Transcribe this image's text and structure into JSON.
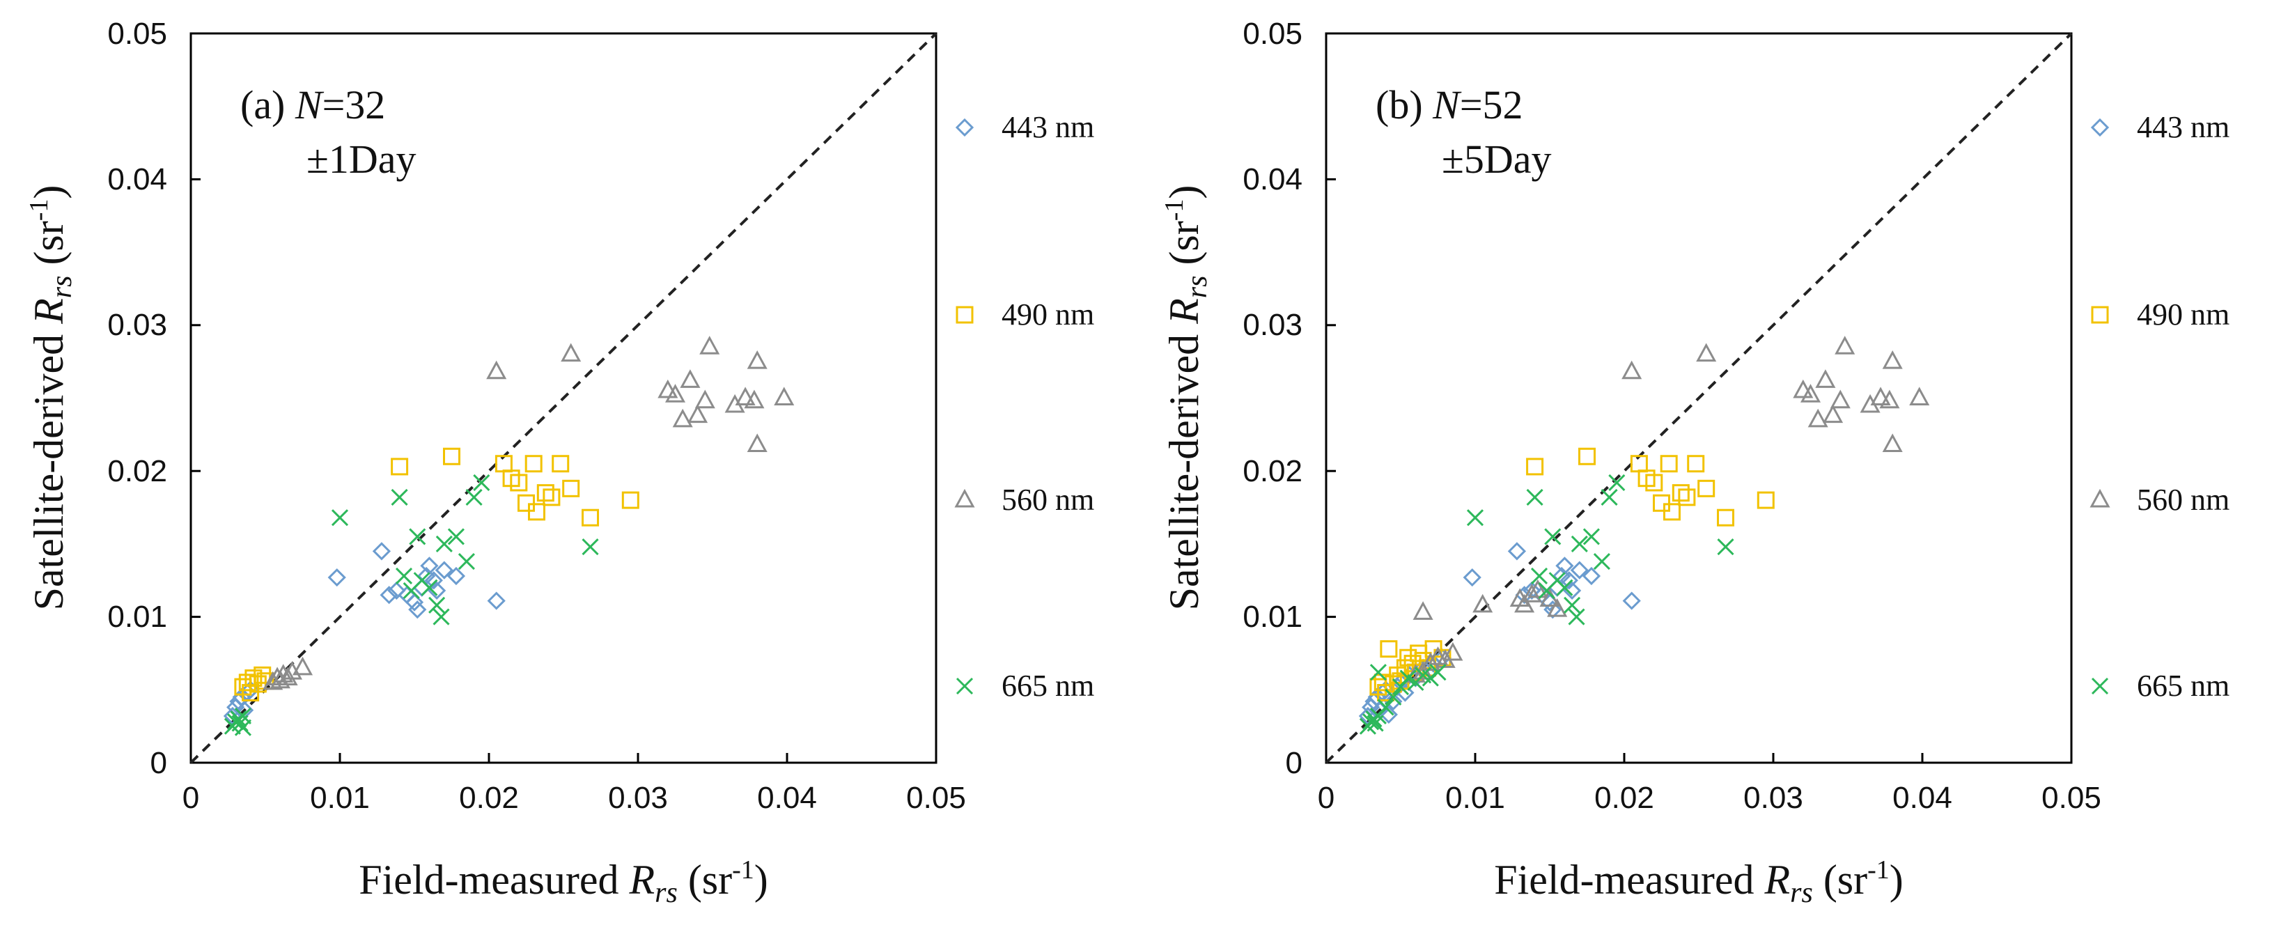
{
  "chart_data": [
    {
      "type": "scatter",
      "panel": "(a)",
      "title": "",
      "annotation": {
        "prefix": "(a) ",
        "n_symbol": "N",
        "n_value": "=32",
        "window": "±1Day"
      },
      "xlabel": {
        "text": "Field-measured ",
        "sym": "R",
        "sub": "rs",
        "unit": " (sr",
        "exp": "-1",
        "close": ")"
      },
      "ylabel": {
        "text": "Satellite-derived ",
        "sym": "R",
        "sub": "rs",
        "unit": " (sr",
        "exp": "-1",
        "close": ")"
      },
      "xlim": [
        0,
        0.05
      ],
      "ylim": [
        0,
        0.05
      ],
      "xticks": [
        "0",
        "0.01",
        "0.02",
        "0.03",
        "0.04",
        "0.05"
      ],
      "yticks": [
        "0",
        "0.01",
        "0.02",
        "0.03",
        "0.04",
        "0.05"
      ],
      "one_to_one_line": true,
      "series": [
        {
          "name": "443 nm",
          "marker": "diamond",
          "color": "#6b9ccf",
          "points": [
            [
              0.0098,
              0.0127
            ],
            [
              0.0128,
              0.0145
            ],
            [
              0.0133,
              0.0115
            ],
            [
              0.0138,
              0.0118
            ],
            [
              0.0145,
              0.0115
            ],
            [
              0.015,
              0.011
            ],
            [
              0.0152,
              0.0105
            ],
            [
              0.0155,
              0.012
            ],
            [
              0.0158,
              0.0128
            ],
            [
              0.016,
              0.0135
            ],
            [
              0.0163,
              0.0125
            ],
            [
              0.0165,
              0.0118
            ],
            [
              0.017,
              0.0132
            ],
            [
              0.0178,
              0.0128
            ],
            [
              0.0205,
              0.0111
            ],
            [
              0.0028,
              0.0032
            ],
            [
              0.003,
              0.0038
            ],
            [
              0.0032,
              0.0042
            ],
            [
              0.0034,
              0.0045
            ],
            [
              0.0036,
              0.0036
            ],
            [
              0.0038,
              0.0048
            ],
            [
              0.004,
              0.005
            ]
          ]
        },
        {
          "name": "490 nm",
          "marker": "square",
          "color": "#f2c200",
          "points": [
            [
              0.014,
              0.0203
            ],
            [
              0.0175,
              0.021
            ],
            [
              0.021,
              0.0205
            ],
            [
              0.0215,
              0.0195
            ],
            [
              0.022,
              0.0192
            ],
            [
              0.0225,
              0.0178
            ],
            [
              0.023,
              0.0205
            ],
            [
              0.0232,
              0.0172
            ],
            [
              0.0238,
              0.0185
            ],
            [
              0.0242,
              0.0182
            ],
            [
              0.0248,
              0.0205
            ],
            [
              0.0255,
              0.0188
            ],
            [
              0.0268,
              0.0168
            ],
            [
              0.0295,
              0.018
            ],
            [
              0.0035,
              0.0052
            ],
            [
              0.0038,
              0.0055
            ],
            [
              0.004,
              0.0048
            ],
            [
              0.0042,
              0.0058
            ],
            [
              0.0045,
              0.0054
            ],
            [
              0.0048,
              0.006
            ],
            [
              0.005,
              0.0056
            ]
          ]
        },
        {
          "name": "560 nm",
          "marker": "triangle",
          "color": "#8c8c8c",
          "points": [
            [
              0.0205,
              0.0268
            ],
            [
              0.0255,
              0.028
            ],
            [
              0.032,
              0.0255
            ],
            [
              0.0325,
              0.0252
            ],
            [
              0.033,
              0.0235
            ],
            [
              0.0335,
              0.0262
            ],
            [
              0.034,
              0.0238
            ],
            [
              0.0345,
              0.0248
            ],
            [
              0.0348,
              0.0285
            ],
            [
              0.0365,
              0.0245
            ],
            [
              0.0372,
              0.025
            ],
            [
              0.0378,
              0.0248
            ],
            [
              0.038,
              0.0275
            ],
            [
              0.038,
              0.0218
            ],
            [
              0.0398,
              0.025
            ],
            [
              0.0055,
              0.0055
            ],
            [
              0.0058,
              0.0058
            ],
            [
              0.006,
              0.0056
            ],
            [
              0.0062,
              0.006
            ],
            [
              0.0065,
              0.0058
            ],
            [
              0.0068,
              0.0062
            ],
            [
              0.0075,
              0.0065
            ]
          ]
        },
        {
          "name": "665 nm",
          "marker": "x",
          "color": "#2db85b",
          "points": [
            [
              0.01,
              0.0168
            ],
            [
              0.014,
              0.0182
            ],
            [
              0.0143,
              0.0128
            ],
            [
              0.0148,
              0.0118
            ],
            [
              0.0152,
              0.0155
            ],
            [
              0.0155,
              0.0125
            ],
            [
              0.016,
              0.012
            ],
            [
              0.0165,
              0.0108
            ],
            [
              0.0168,
              0.01
            ],
            [
              0.017,
              0.015
            ],
            [
              0.0178,
              0.0155
            ],
            [
              0.0185,
              0.0138
            ],
            [
              0.019,
              0.0182
            ],
            [
              0.0195,
              0.0192
            ],
            [
              0.0268,
              0.0148
            ],
            [
              0.0028,
              0.0025
            ],
            [
              0.003,
              0.0028
            ],
            [
              0.0032,
              0.003
            ],
            [
              0.0033,
              0.0027
            ],
            [
              0.0035,
              0.0032
            ],
            [
              0.0035,
              0.0024
            ]
          ]
        }
      ]
    },
    {
      "type": "scatter",
      "panel": "(b)",
      "title": "",
      "annotation": {
        "prefix": "(b) ",
        "n_symbol": "N",
        "n_value": "=52",
        "window": "±5Day"
      },
      "xlabel": {
        "text": "Field-measured ",
        "sym": "R",
        "sub": "rs",
        "unit": " (sr",
        "exp": "-1",
        "close": ")"
      },
      "ylabel": {
        "text": "Satellite-derived ",
        "sym": "R",
        "sub": "rs",
        "unit": " (sr",
        "exp": "-1",
        "close": ")"
      },
      "xlim": [
        0,
        0.05
      ],
      "ylim": [
        0,
        0.05
      ],
      "xticks": [
        "0",
        "0.01",
        "0.02",
        "0.03",
        "0.04",
        "0.05"
      ],
      "yticks": [
        "0",
        "0.01",
        "0.02",
        "0.03",
        "0.04",
        "0.05"
      ],
      "one_to_one_line": true,
      "series": [
        {
          "name": "443 nm",
          "marker": "diamond",
          "color": "#6b9ccf",
          "points": [
            [
              0.0098,
              0.0127
            ],
            [
              0.0128,
              0.0145
            ],
            [
              0.0133,
              0.0115
            ],
            [
              0.0138,
              0.0118
            ],
            [
              0.0145,
              0.0115
            ],
            [
              0.015,
              0.011
            ],
            [
              0.0152,
              0.0105
            ],
            [
              0.0155,
              0.012
            ],
            [
              0.0158,
              0.0128
            ],
            [
              0.016,
              0.0135
            ],
            [
              0.0163,
              0.0125
            ],
            [
              0.0165,
              0.0118
            ],
            [
              0.017,
              0.0132
            ],
            [
              0.0178,
              0.0128
            ],
            [
              0.0205,
              0.0111
            ],
            [
              0.0028,
              0.0032
            ],
            [
              0.003,
              0.0038
            ],
            [
              0.0032,
              0.0042
            ],
            [
              0.0034,
              0.0045
            ],
            [
              0.0036,
              0.0036
            ],
            [
              0.0038,
              0.0048
            ],
            [
              0.004,
              0.005
            ],
            [
              0.0042,
              0.0033
            ],
            [
              0.0045,
              0.0042
            ],
            [
              0.0048,
              0.0052
            ],
            [
              0.005,
              0.0055
            ],
            [
              0.0053,
              0.0048
            ],
            [
              0.0056,
              0.006
            ],
            [
              0.006,
              0.0058
            ],
            [
              0.0065,
              0.0065
            ],
            [
              0.0072,
              0.0068
            ],
            [
              0.0078,
              0.0072
            ]
          ]
        },
        {
          "name": "490 nm",
          "marker": "square",
          "color": "#f2c200",
          "points": [
            [
              0.014,
              0.0203
            ],
            [
              0.0175,
              0.021
            ],
            [
              0.021,
              0.0205
            ],
            [
              0.0215,
              0.0195
            ],
            [
              0.022,
              0.0192
            ],
            [
              0.0225,
              0.0178
            ],
            [
              0.023,
              0.0205
            ],
            [
              0.0232,
              0.0172
            ],
            [
              0.0238,
              0.0185
            ],
            [
              0.0242,
              0.0182
            ],
            [
              0.0248,
              0.0205
            ],
            [
              0.0255,
              0.0188
            ],
            [
              0.0268,
              0.0168
            ],
            [
              0.0295,
              0.018
            ],
            [
              0.0035,
              0.0052
            ],
            [
              0.0038,
              0.0055
            ],
            [
              0.004,
              0.0048
            ],
            [
              0.0042,
              0.0078
            ],
            [
              0.0045,
              0.0054
            ],
            [
              0.0048,
              0.006
            ],
            [
              0.005,
              0.0056
            ],
            [
              0.0053,
              0.0065
            ],
            [
              0.0055,
              0.0072
            ],
            [
              0.0058,
              0.0068
            ],
            [
              0.006,
              0.0062
            ],
            [
              0.0062,
              0.0075
            ],
            [
              0.0065,
              0.007
            ],
            [
              0.0068,
              0.0065
            ],
            [
              0.0072,
              0.0078
            ],
            [
              0.0078,
              0.0072
            ]
          ]
        },
        {
          "name": "560 nm",
          "marker": "triangle",
          "color": "#8c8c8c",
          "points": [
            [
              0.0205,
              0.0268
            ],
            [
              0.0255,
              0.028
            ],
            [
              0.032,
              0.0255
            ],
            [
              0.0325,
              0.0252
            ],
            [
              0.033,
              0.0235
            ],
            [
              0.0335,
              0.0262
            ],
            [
              0.034,
              0.0238
            ],
            [
              0.0345,
              0.0248
            ],
            [
              0.0348,
              0.0285
            ],
            [
              0.0365,
              0.0245
            ],
            [
              0.0372,
              0.025
            ],
            [
              0.0378,
              0.0248
            ],
            [
              0.038,
              0.0275
            ],
            [
              0.038,
              0.0218
            ],
            [
              0.0398,
              0.025
            ],
            [
              0.0065,
              0.0103
            ],
            [
              0.0105,
              0.0108
            ],
            [
              0.013,
              0.0112
            ],
            [
              0.0133,
              0.0108
            ],
            [
              0.0138,
              0.0115
            ],
            [
              0.0142,
              0.0118
            ],
            [
              0.015,
              0.0112
            ],
            [
              0.0155,
              0.0105
            ],
            [
              0.006,
              0.006
            ],
            [
              0.0065,
              0.0062
            ],
            [
              0.007,
              0.0068
            ],
            [
              0.0075,
              0.0072
            ],
            [
              0.008,
              0.007
            ],
            [
              0.0085,
              0.0075
            ]
          ]
        },
        {
          "name": "665 nm",
          "marker": "x",
          "color": "#2db85b",
          "points": [
            [
              0.01,
              0.0168
            ],
            [
              0.014,
              0.0182
            ],
            [
              0.0143,
              0.0128
            ],
            [
              0.0148,
              0.0118
            ],
            [
              0.0152,
              0.0155
            ],
            [
              0.0155,
              0.0125
            ],
            [
              0.016,
              0.012
            ],
            [
              0.0165,
              0.0108
            ],
            [
              0.0168,
              0.01
            ],
            [
              0.017,
              0.015
            ],
            [
              0.0178,
              0.0155
            ],
            [
              0.0185,
              0.0138
            ],
            [
              0.019,
              0.0182
            ],
            [
              0.0195,
              0.0192
            ],
            [
              0.0268,
              0.0148
            ],
            [
              0.0028,
              0.0025
            ],
            [
              0.003,
              0.0028
            ],
            [
              0.0032,
              0.003
            ],
            [
              0.0033,
              0.0027
            ],
            [
              0.0035,
              0.0032
            ],
            [
              0.0035,
              0.0062
            ],
            [
              0.004,
              0.0038
            ],
            [
              0.0045,
              0.0045
            ],
            [
              0.005,
              0.0052
            ],
            [
              0.0055,
              0.0058
            ],
            [
              0.006,
              0.0055
            ],
            [
              0.0065,
              0.006
            ],
            [
              0.007,
              0.0058
            ],
            [
              0.0075,
              0.0062
            ]
          ]
        }
      ]
    }
  ]
}
